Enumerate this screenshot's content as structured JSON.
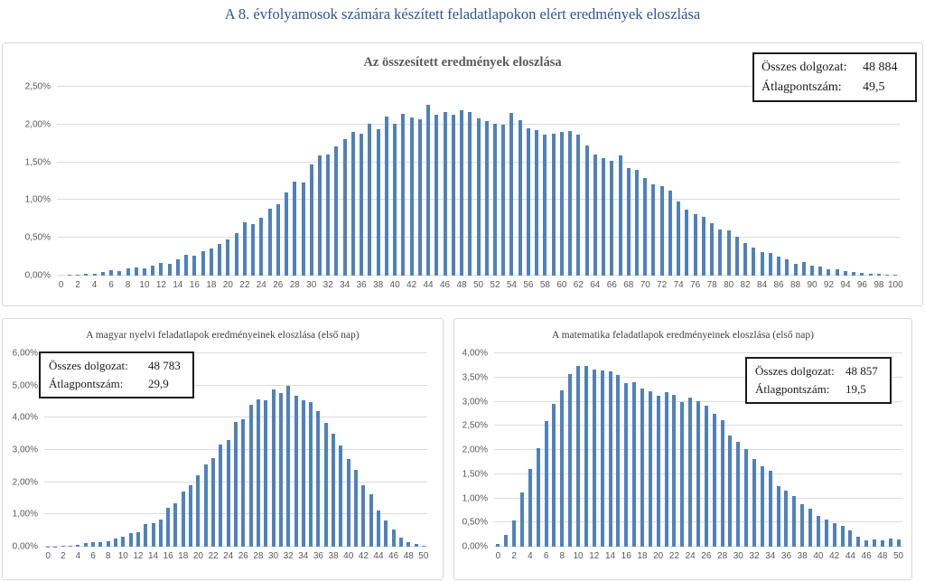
{
  "page_title": "A 8. évfolyamosok számára készített feladatlapokon elért eredmények eloszlása",
  "colors": {
    "bar_fill": "#4f81bd",
    "gridline": "#dcdcdc",
    "axis_text": "#595959",
    "chart_title_text": "#595959",
    "page_title_text": "#2f5496",
    "info_box_border": "#1a1a1a"
  },
  "chart_data": [
    {
      "type": "bar",
      "title": "Az összesített eredmények eloszlása",
      "xlabel": "",
      "ylabel": "",
      "grid": true,
      "ylim": [
        0,
        2.5
      ],
      "ytick_step": 0.5,
      "ytick_labels": [
        "0,00%",
        "0,50%",
        "1,00%",
        "1,50%",
        "2,00%",
        "2,50%"
      ],
      "xtick_labels": [
        "0",
        "2",
        "4",
        "6",
        "8",
        "10",
        "12",
        "14",
        "16",
        "18",
        "20",
        "22",
        "24",
        "26",
        "28",
        "30",
        "32",
        "34",
        "36",
        "38",
        "40",
        "42",
        "44",
        "46",
        "48",
        "50",
        "52",
        "54",
        "56",
        "58",
        "60",
        "62",
        "64",
        "66",
        "68",
        "70",
        "72",
        "74",
        "76",
        "78",
        "80",
        "82",
        "84",
        "86",
        "88",
        "90",
        "92",
        "94",
        "96",
        "98",
        "100"
      ],
      "x_range": [
        0,
        100
      ],
      "values_unit": "percent",
      "values": [
        0.0,
        0.01,
        0.01,
        0.02,
        0.03,
        0.05,
        0.07,
        0.06,
        0.1,
        0.11,
        0.1,
        0.13,
        0.17,
        0.16,
        0.21,
        0.27,
        0.26,
        0.32,
        0.36,
        0.42,
        0.48,
        0.56,
        0.7,
        0.68,
        0.76,
        0.88,
        0.95,
        1.1,
        1.24,
        1.23,
        1.47,
        1.59,
        1.6,
        1.71,
        1.81,
        1.9,
        1.88,
        2.01,
        1.94,
        2.11,
        2.01,
        2.14,
        2.09,
        2.07,
        2.26,
        2.13,
        2.17,
        2.13,
        2.19,
        2.16,
        2.08,
        2.04,
        2.01,
        2.0,
        2.15,
        2.06,
        1.95,
        1.93,
        1.87,
        1.88,
        1.9,
        1.91,
        1.87,
        1.72,
        1.6,
        1.55,
        1.52,
        1.59,
        1.42,
        1.4,
        1.29,
        1.21,
        1.18,
        1.12,
        0.98,
        0.87,
        0.81,
        0.78,
        0.69,
        0.61,
        0.6,
        0.51,
        0.43,
        0.37,
        0.31,
        0.3,
        0.25,
        0.22,
        0.16,
        0.18,
        0.13,
        0.12,
        0.08,
        0.08,
        0.06,
        0.05,
        0.04,
        0.03,
        0.02,
        0.01,
        0.01
      ],
      "info_box": {
        "rows": [
          {
            "label": "Összes dolgozat:",
            "value": "48 884"
          },
          {
            "label": "Átlagpontszám:",
            "value": "49,5"
          }
        ],
        "position": "top-right"
      }
    },
    {
      "type": "bar",
      "title": "A magyar nyelvi feladatlapok eredményeinek eloszlása (első nap)",
      "xlabel": "",
      "ylabel": "",
      "grid": true,
      "ylim": [
        0,
        6
      ],
      "ytick_step": 1,
      "ytick_labels": [
        "0,00%",
        "1,00%",
        "2,00%",
        "3,00%",
        "4,00%",
        "5,00%",
        "6,00%"
      ],
      "xtick_labels": [
        "0",
        "2",
        "4",
        "6",
        "8",
        "10",
        "12",
        "14",
        "16",
        "18",
        "20",
        "22",
        "24",
        "26",
        "28",
        "30",
        "32",
        "34",
        "36",
        "38",
        "40",
        "42",
        "44",
        "46",
        "48",
        "50"
      ],
      "x_range": [
        0,
        50
      ],
      "values_unit": "percent",
      "values": [
        0.01,
        0.01,
        0.02,
        0.04,
        0.07,
        0.1,
        0.14,
        0.15,
        0.17,
        0.24,
        0.3,
        0.41,
        0.44,
        0.69,
        0.74,
        0.83,
        1.2,
        1.35,
        1.71,
        1.91,
        2.21,
        2.56,
        2.74,
        3.18,
        3.3,
        3.87,
        3.94,
        4.4,
        4.57,
        4.53,
        4.88,
        4.78,
        5.0,
        4.67,
        4.55,
        4.48,
        4.21,
        3.84,
        3.5,
        3.15,
        2.72,
        2.37,
        1.92,
        1.62,
        1.13,
        0.8,
        0.52,
        0.28,
        0.13,
        0.08,
        0.03
      ],
      "info_box": {
        "rows": [
          {
            "label": "Összes dolgozat:",
            "value": "48 783"
          },
          {
            "label": "Átlagpontszám:",
            "value": "29,9"
          }
        ],
        "position": "top-left"
      }
    },
    {
      "type": "bar",
      "title": "A matematika feladatlapok eredményeinek eloszlása (első nap)",
      "xlabel": "",
      "ylabel": "",
      "grid": true,
      "ylim": [
        0,
        4
      ],
      "ytick_step": 0.5,
      "ytick_labels": [
        "0,00%",
        "0,50%",
        "1,00%",
        "1,50%",
        "2,00%",
        "2,50%",
        "3,00%",
        "3,50%",
        "4,00%"
      ],
      "xtick_labels": [
        "0",
        "2",
        "4",
        "6",
        "8",
        "10",
        "12",
        "14",
        "16",
        "18",
        "20",
        "22",
        "24",
        "26",
        "28",
        "30",
        "32",
        "34",
        "36",
        "38",
        "40",
        "42",
        "44",
        "46",
        "48",
        "50"
      ],
      "x_range": [
        0,
        50
      ],
      "values_unit": "percent",
      "values": [
        0.06,
        0.25,
        0.54,
        1.12,
        1.6,
        2.04,
        2.6,
        2.96,
        3.23,
        3.57,
        3.73,
        3.73,
        3.66,
        3.65,
        3.62,
        3.55,
        3.38,
        3.4,
        3.27,
        3.22,
        3.12,
        3.19,
        3.14,
        2.99,
        3.08,
        3.01,
        2.91,
        2.74,
        2.61,
        2.3,
        2.16,
        2.02,
        1.81,
        1.67,
        1.57,
        1.25,
        1.16,
        1.04,
        0.88,
        0.79,
        0.63,
        0.56,
        0.48,
        0.43,
        0.33,
        0.21,
        0.14,
        0.15,
        0.13,
        0.16,
        0.15
      ],
      "info_box": {
        "rows": [
          {
            "label": "Összes dolgozat:",
            "value": "48 857"
          },
          {
            "label": "Átlagpontszám:",
            "value": "19,5"
          }
        ],
        "position": "top-right"
      }
    }
  ]
}
